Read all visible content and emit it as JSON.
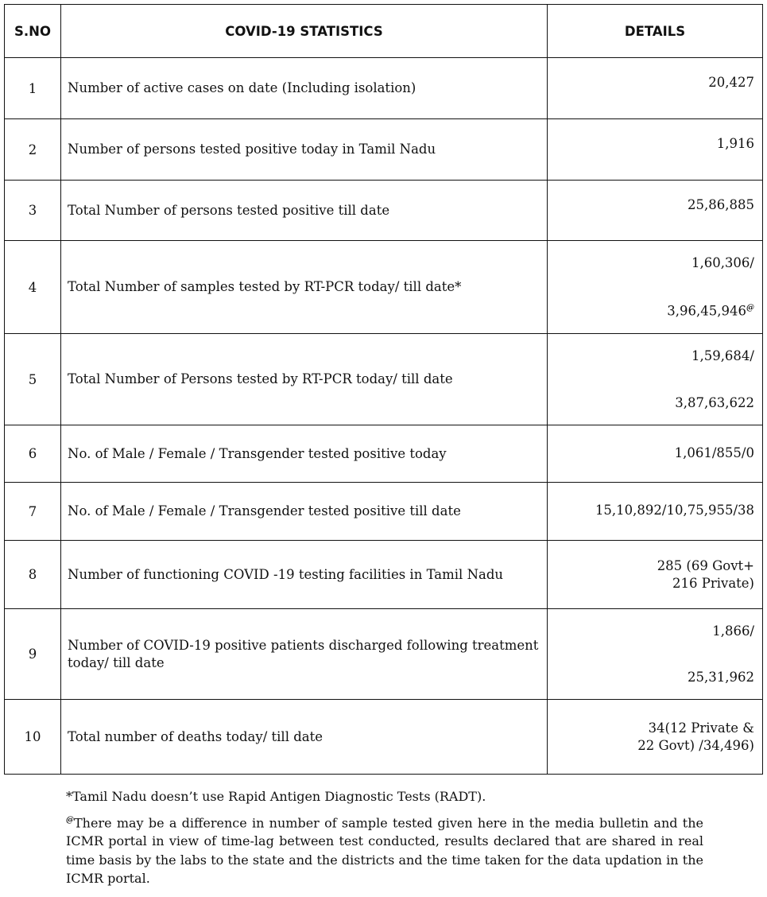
{
  "table": {
    "headers": [
      "S.NO",
      "COVID-19 STATISTICS",
      "DETAILS"
    ],
    "rows": [
      {
        "sno": "1",
        "label": "Number of active cases on date (Including isolation)",
        "details": [
          "20,427"
        ]
      },
      {
        "sno": "2",
        "label": "Number of persons tested positive today in Tamil Nadu",
        "details": [
          "1,916"
        ]
      },
      {
        "sno": "3",
        "label": "Total Number of persons tested positive till date",
        "details": [
          "25,86,885"
        ]
      },
      {
        "sno": "4",
        "label": "Total Number of samples tested by  RT-PCR today/ till date*",
        "details": [
          "1,60,306/",
          "3,96,45,946"
        ],
        "superscript": "@"
      },
      {
        "sno": "5",
        "label": "Total Number of Persons tested by  RT-PCR today/ till date",
        "details": [
          "1,59,684/",
          "3,87,63,622"
        ]
      },
      {
        "sno": "6",
        "label": "No. of Male / Female / Transgender tested positive today",
        "details": [
          "1,061/855/0"
        ]
      },
      {
        "sno": "7",
        "label": "No. of Male / Female / Transgender tested positive till date",
        "details": [
          "15,10,892/10,75,955/38"
        ]
      },
      {
        "sno": "8",
        "label": "Number of functioning COVID -19 testing facilities in Tamil Nadu",
        "details": [
          "285 (69 Govt+",
          "216 Private)"
        ]
      },
      {
        "sno": "9",
        "label": "Number of COVID-19 positive patients discharged following treatment today/ till date",
        "details": [
          "1,866/",
          "25,31,962"
        ]
      },
      {
        "sno": "10",
        "label": "Total number of deaths today/ till date",
        "details": [
          "34(12 Private &",
          "22 Govt) /34,496)"
        ]
      }
    ]
  },
  "notes": {
    "note1": "*Tamil Nadu doesn’t use Rapid Antigen Diagnostic Tests (RADT).",
    "note2_mark": "@",
    "note2": "There may be a difference in number of sample tested given here in the media bulletin and the ICMR portal in view of time-lag between test conducted, results declared that are shared in real time basis by the labs to the state and the districts and the time taken for the data updation in the ICMR portal."
  }
}
